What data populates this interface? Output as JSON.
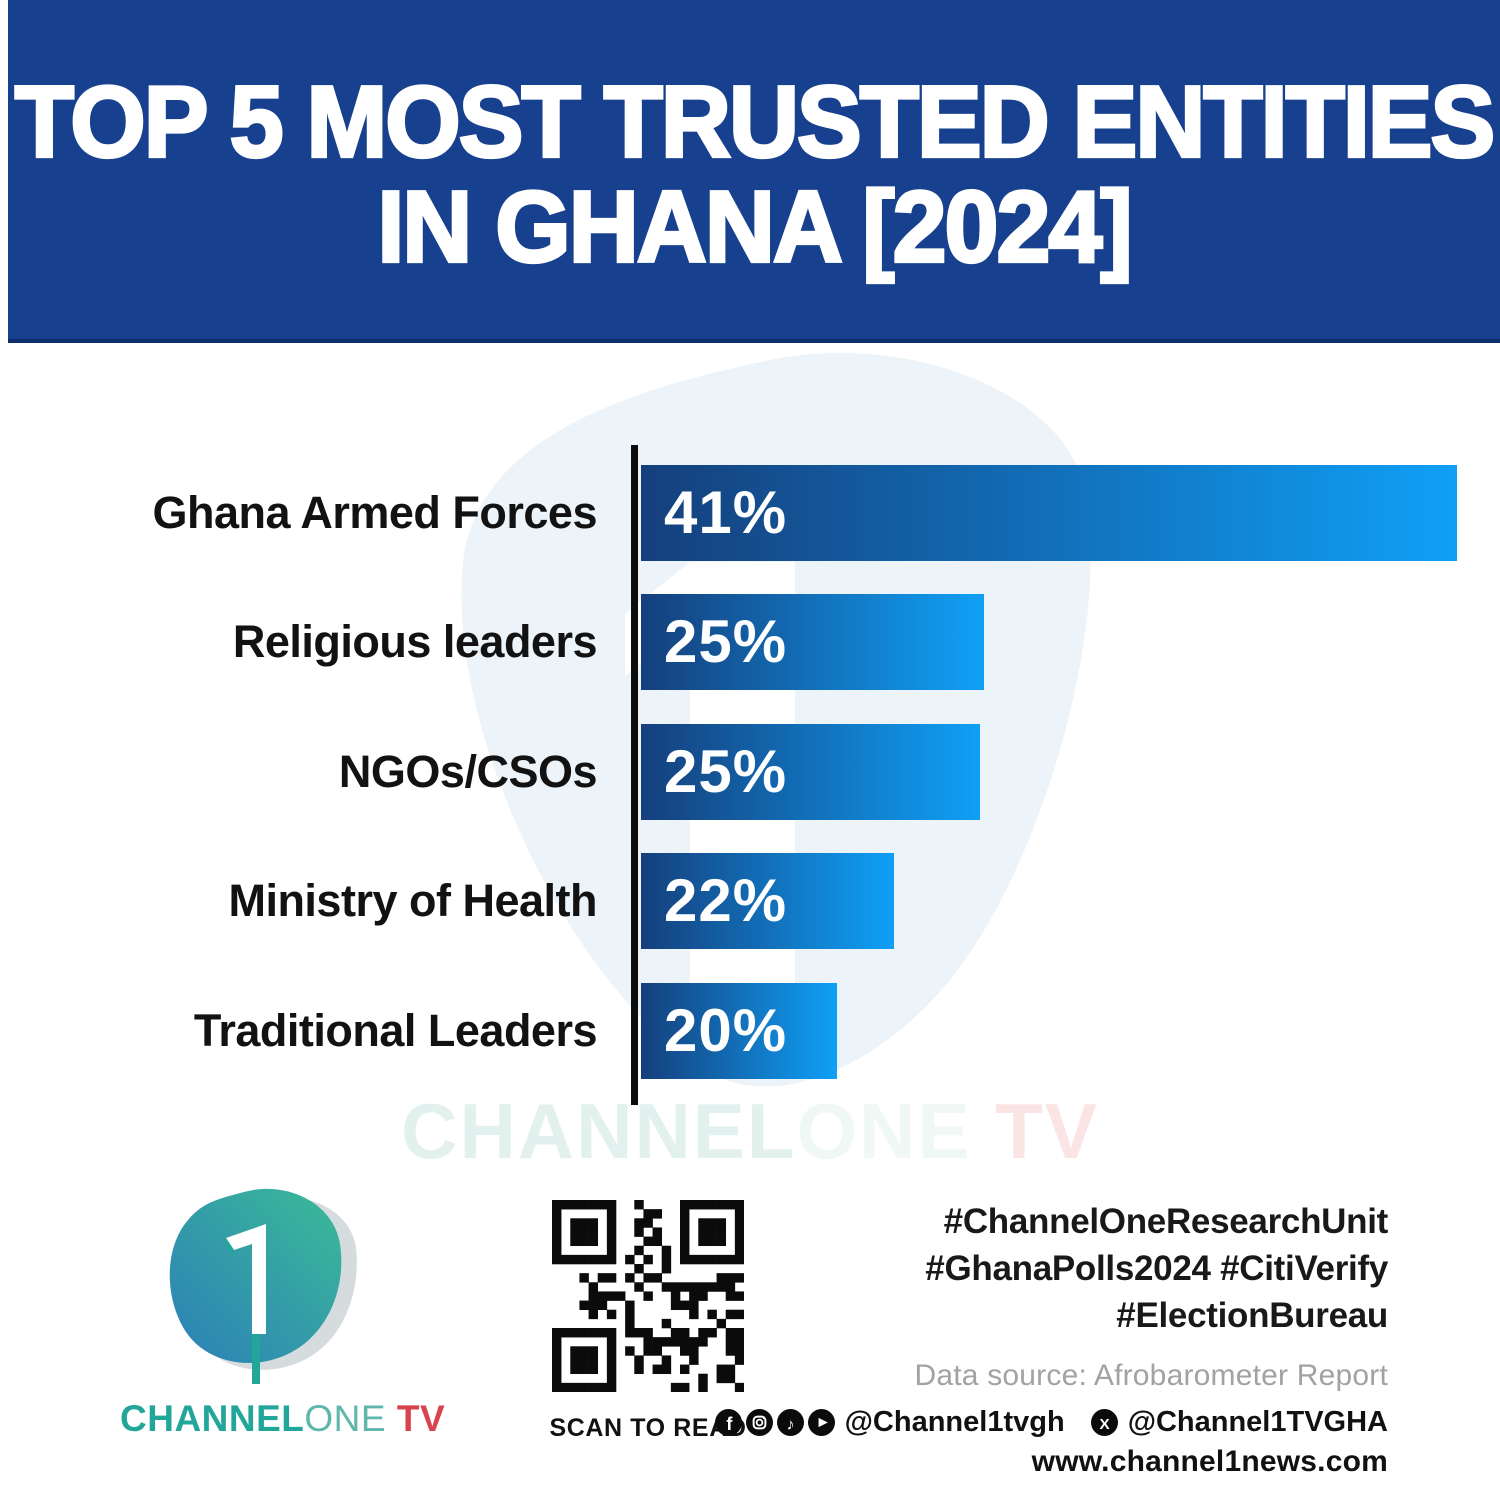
{
  "header": {
    "title_line1": "TOP 5 MOST TRUSTED ENTITIES",
    "title_line2": "IN GHANA [2024]"
  },
  "chart_data": {
    "type": "bar",
    "orientation": "horizontal",
    "title": "TOP 5 MOST TRUSTED ENTITIES IN GHANA [2024]",
    "categories": [
      "Ghana Armed Forces",
      "Religious leaders",
      "NGOs/CSOs",
      "Ministry of Health",
      "Traditional Leaders"
    ],
    "values": [
      41,
      25,
      25,
      22,
      20
    ],
    "value_labels": [
      "41%",
      "25%",
      "25%",
      "22%",
      "20%"
    ],
    "bar_width_pct": [
      100,
      42,
      41.5,
      31,
      24
    ],
    "xlim": [
      0,
      41
    ],
    "grid": false,
    "value_label_position": "inside-left",
    "axis_color": "#0D0D0D",
    "bar_gradient": [
      "#153F7C",
      "#0FA0F6"
    ]
  },
  "watermark": {
    "channel": "CHANNEL",
    "one": "ONE",
    "tv": " TV"
  },
  "footer": {
    "logo": {
      "channel": "CHANNEL",
      "one": "ONE",
      "tv": " TV"
    },
    "qr_caption": "SCAN TO READ",
    "hashtags": [
      "#ChannelOneResearchUnit",
      "#GhanaPolls2024 #CitiVerify",
      "#ElectionBureau"
    ],
    "data_source": "Data source: Afrobarometer Report",
    "social": {
      "icons": [
        "facebook-icon",
        "instagram-icon",
        "tiktok-icon",
        "youtube-icon"
      ],
      "handle1": "@Channel1tvgh",
      "x_icon": "x-icon",
      "handle2": "@Channel1TVGHA"
    },
    "website": "www.channel1news.com"
  },
  "colors": {
    "banner_bg": "#17408F",
    "bar_dark": "#153F7C",
    "bar_light": "#0FA0F6",
    "label_text": "#121212",
    "hashtag_text": "#191919",
    "source_text": "#A2A2A2",
    "logo_teal": "#23A69A",
    "logo_light_teal": "#5FB7AC",
    "logo_red": "#D8434E"
  }
}
